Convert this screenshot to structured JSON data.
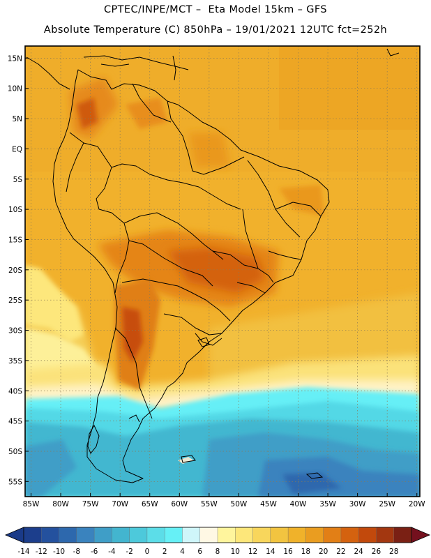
{
  "header": {
    "line1": "CPTEC/INPE/MCT –  Eta Model 15km – GFS",
    "line2": "Absolute Temperature (C) 850hPa – 19/01/2021 12UTC fct=252h"
  },
  "map": {
    "variable": "Absolute Temperature",
    "unit": "C",
    "level": "850hPa",
    "lon_range": [
      -86,
      -19.5
    ],
    "lat_range": [
      -57.5,
      17
    ],
    "lat_labels": [
      {
        "lat": 15,
        "label": "15N"
      },
      {
        "lat": 10,
        "label": "10N"
      },
      {
        "lat": 5,
        "label": "5N"
      },
      {
        "lat": 0,
        "label": "EQ"
      },
      {
        "lat": -5,
        "label": "5S"
      },
      {
        "lat": -10,
        "label": "10S"
      },
      {
        "lat": -15,
        "label": "15S"
      },
      {
        "lat": -20,
        "label": "20S"
      },
      {
        "lat": -25,
        "label": "25S"
      },
      {
        "lat": -30,
        "label": "30S"
      },
      {
        "lat": -35,
        "label": "35S"
      },
      {
        "lat": -40,
        "label": "40S"
      },
      {
        "lat": -45,
        "label": "45S"
      },
      {
        "lat": -50,
        "label": "50S"
      },
      {
        "lat": -55,
        "label": "55S"
      }
    ],
    "lon_labels": [
      {
        "lon": -85,
        "label": "85W"
      },
      {
        "lon": -80,
        "label": "80W"
      },
      {
        "lon": -75,
        "label": "75W"
      },
      {
        "lon": -70,
        "label": "70W"
      },
      {
        "lon": -65,
        "label": "65W"
      },
      {
        "lon": -60,
        "label": "60W"
      },
      {
        "lon": -55,
        "label": "55W"
      },
      {
        "lon": -50,
        "label": "50W"
      },
      {
        "lon": -45,
        "label": "45W"
      },
      {
        "lon": -40,
        "label": "40W"
      },
      {
        "lon": -35,
        "label": "35W"
      },
      {
        "lon": -30,
        "label": "30W"
      },
      {
        "lon": -25,
        "label": "25W"
      },
      {
        "lon": -20,
        "label": "20W"
      }
    ]
  },
  "colorbar": {
    "labels": [
      "-14",
      "-12",
      "-10",
      "-8",
      "-6",
      "-4",
      "-2",
      "0",
      "2",
      "4",
      "6",
      "8",
      "10",
      "12",
      "14",
      "16",
      "18",
      "20",
      "22",
      "24",
      "26",
      "28"
    ],
    "colors": [
      "#1c3e8c",
      "#24519e",
      "#2d68ad",
      "#3a83be",
      "#3f9ec7",
      "#43b5cf",
      "#4dc9db",
      "#5cdde8",
      "#66f0f6",
      "#cff6fa",
      "#fff8e4",
      "#fff59d",
      "#fde77a",
      "#f8d65c",
      "#f2c440",
      "#f0b22a",
      "#ea9d20",
      "#e27f16",
      "#d4620f",
      "#c2490c",
      "#a33710",
      "#7a2014"
    ],
    "under_color": "#1a3a88",
    "over_color": "#74101e"
  }
}
